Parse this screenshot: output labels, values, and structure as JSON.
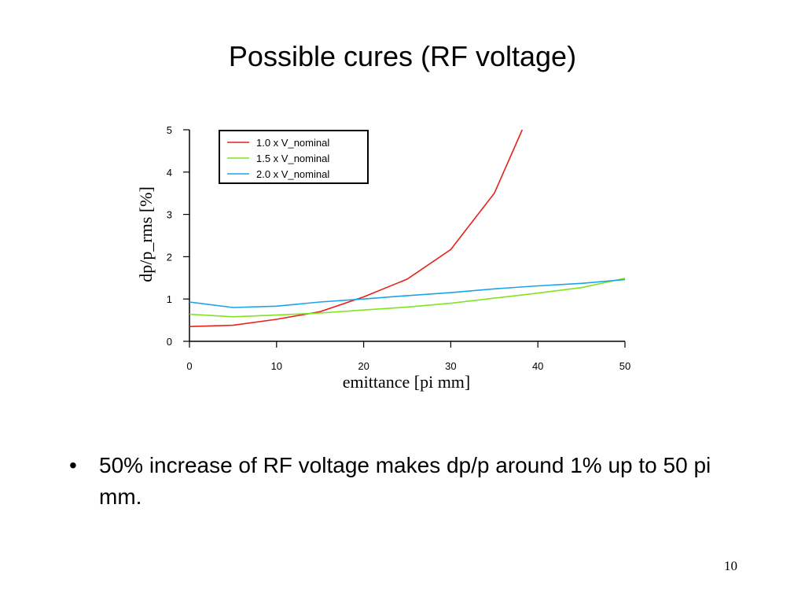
{
  "slide": {
    "title": "Possible cures (RF voltage)",
    "bullet_symbol": "•",
    "bullet_text": "50% increase of RF voltage makes dp/p around 1% up to 50 pi mm.",
    "page_number": "10"
  },
  "chart_data": {
    "type": "line",
    "title": "",
    "xlabel": "emittance [pi mm]",
    "ylabel": "dp/p_rms [%]",
    "xlim": [
      0,
      50
    ],
    "ylim": [
      0,
      5
    ],
    "xticks": [
      0,
      10,
      20,
      30,
      40,
      50
    ],
    "yticks": [
      0,
      1,
      2,
      3,
      4,
      5
    ],
    "grid": false,
    "legend_position": "top-left",
    "series": [
      {
        "name": "1.0 x V_nominal",
        "color": "#e8221b",
        "x": [
          0,
          5,
          10,
          15,
          20,
          25,
          30,
          35,
          38.2
        ],
        "y": [
          0.35,
          0.38,
          0.52,
          0.7,
          1.05,
          1.47,
          2.17,
          3.5,
          5.0
        ]
      },
      {
        "name": "1.5 x V_nominal",
        "color": "#7ee61e",
        "x": [
          0,
          5,
          10,
          15,
          20,
          25,
          30,
          35,
          40,
          45,
          50
        ],
        "y": [
          0.64,
          0.58,
          0.62,
          0.67,
          0.74,
          0.81,
          0.9,
          1.02,
          1.14,
          1.27,
          1.49
        ]
      },
      {
        "name": "2.0 x V_nominal",
        "color": "#1aa3e8",
        "x": [
          0,
          5,
          10,
          15,
          20,
          25,
          30,
          35,
          40,
          45,
          50
        ],
        "y": [
          0.93,
          0.8,
          0.83,
          0.93,
          1.0,
          1.08,
          1.15,
          1.24,
          1.31,
          1.37,
          1.46
        ]
      }
    ]
  }
}
